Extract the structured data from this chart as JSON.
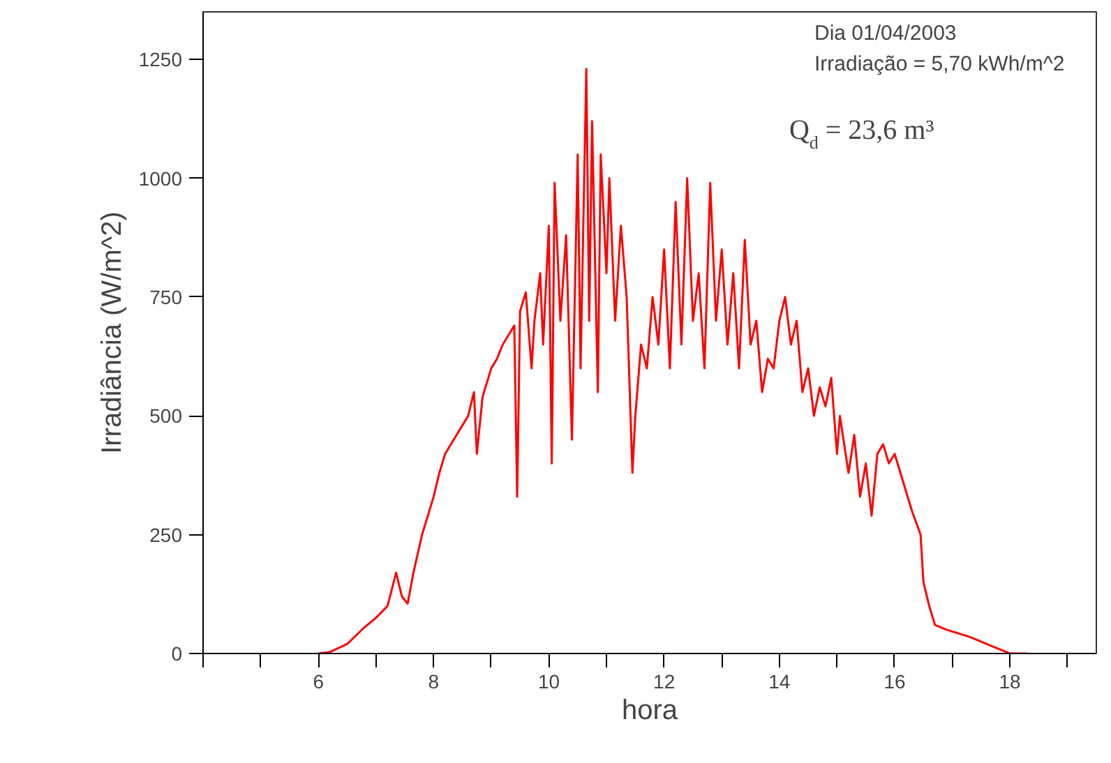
{
  "chart_data": {
    "type": "line",
    "xlabel": "hora",
    "ylabel": "Irradiância (W/m^2)",
    "annotations": [
      "Dia 01/04/2003",
      "Irradiação = 5,70 kWh/m^2",
      "Q$_{d}$ = 23,6 m³"
    ],
    "xlim": [
      4,
      19.5
    ],
    "ylim": [
      0,
      1350
    ],
    "xticks": [
      {
        "value": 4,
        "label": null
      },
      {
        "value": 5,
        "label": null
      },
      6,
      {
        "value": 7,
        "label": null
      },
      8,
      {
        "value": 9,
        "label": null
      },
      10,
      {
        "value": 11,
        "label": null
      },
      12,
      {
        "value": 13,
        "label": null
      },
      14,
      {
        "value": 15,
        "label": null
      },
      16,
      {
        "value": 17,
        "label": null
      },
      18,
      {
        "value": 19,
        "label": null
      }
    ],
    "yticks": [
      0,
      250,
      500,
      750,
      1000,
      1250
    ],
    "grid": false,
    "marker": "none",
    "line_style": "solid",
    "series": [
      {
        "color": "#ff0000",
        "x": [
          6.0,
          6.2,
          6.5,
          6.8,
          7.0,
          7.2,
          7.35,
          7.45,
          7.55,
          7.65,
          7.8,
          8.0,
          8.1,
          8.2,
          8.35,
          8.5,
          8.6,
          8.7,
          8.75,
          8.85,
          9.0,
          9.1,
          9.2,
          9.3,
          9.4,
          9.45,
          9.5,
          9.6,
          9.7,
          9.75,
          9.85,
          9.9,
          10.0,
          10.05,
          10.1,
          10.2,
          10.3,
          10.4,
          10.5,
          10.55,
          10.65,
          10.7,
          10.75,
          10.85,
          10.9,
          11.0,
          11.05,
          11.15,
          11.25,
          11.35,
          11.45,
          11.5,
          11.6,
          11.7,
          11.8,
          11.9,
          12.0,
          12.1,
          12.2,
          12.3,
          12.4,
          12.5,
          12.6,
          12.7,
          12.8,
          12.9,
          13.0,
          13.1,
          13.2,
          13.3,
          13.4,
          13.5,
          13.6,
          13.7,
          13.8,
          13.9,
          14.0,
          14.1,
          14.2,
          14.3,
          14.4,
          14.5,
          14.6,
          14.7,
          14.8,
          14.9,
          15.0,
          15.05,
          15.2,
          15.3,
          15.4,
          15.5,
          15.6,
          15.7,
          15.8,
          15.9,
          16.0,
          16.1,
          16.3,
          16.45,
          16.5,
          16.6,
          16.7,
          16.9,
          17.3,
          17.7,
          18.0,
          18.3
        ],
        "values": [
          0,
          3,
          20,
          55,
          75,
          100,
          170,
          120,
          105,
          170,
          250,
          330,
          380,
          420,
          450,
          480,
          500,
          550,
          420,
          540,
          600,
          620,
          650,
          670,
          690,
          330,
          720,
          760,
          600,
          700,
          800,
          650,
          900,
          400,
          990,
          700,
          880,
          450,
          1050,
          600,
          1230,
          700,
          1120,
          550,
          1050,
          800,
          1000,
          700,
          900,
          750,
          380,
          500,
          650,
          600,
          750,
          650,
          850,
          600,
          950,
          650,
          1000,
          700,
          800,
          600,
          990,
          700,
          850,
          650,
          800,
          600,
          870,
          650,
          700,
          550,
          620,
          600,
          700,
          750,
          650,
          700,
          550,
          600,
          500,
          560,
          520,
          580,
          420,
          500,
          380,
          460,
          330,
          400,
          290,
          420,
          440,
          400,
          420,
          380,
          300,
          250,
          150,
          100,
          60,
          50,
          35,
          15,
          0,
          0
        ]
      }
    ]
  }
}
